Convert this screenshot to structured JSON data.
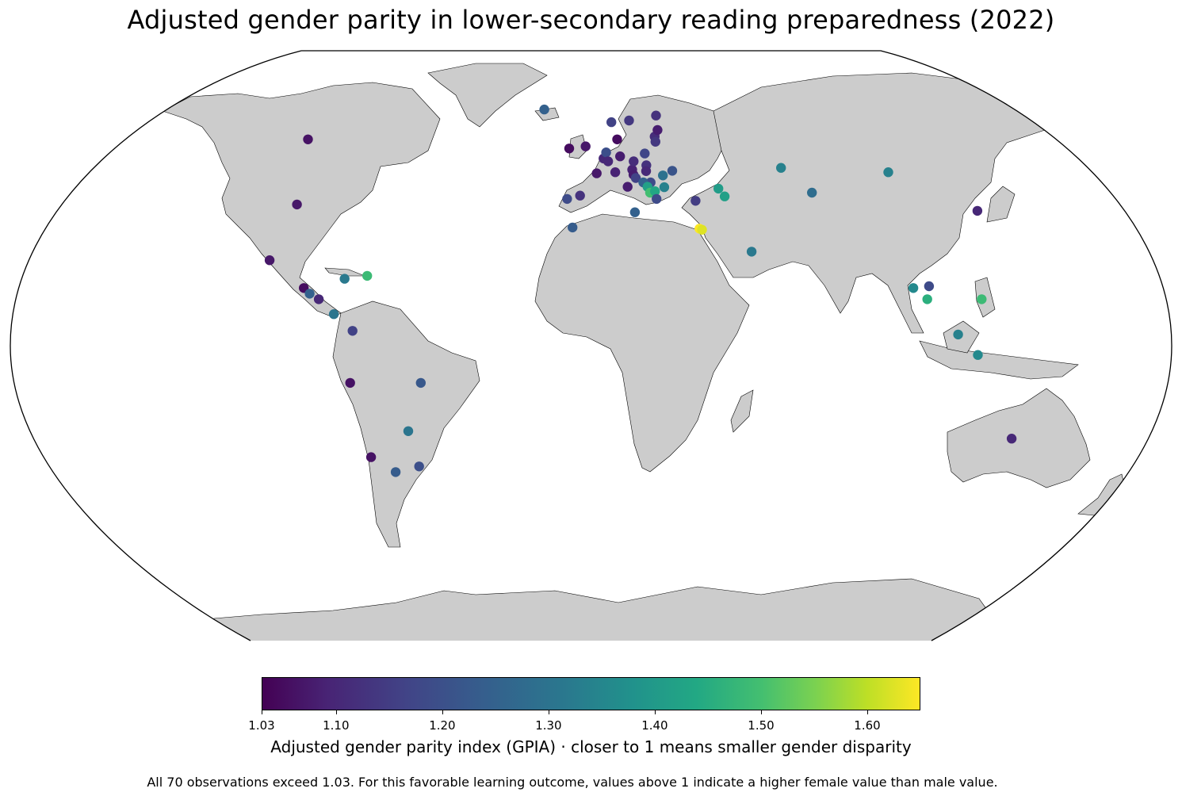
{
  "title": "Adjusted gender parity in lower-secondary reading preparedness (2022)",
  "colorbar": {
    "min": 1.03,
    "max": 1.65,
    "colormap": "viridis",
    "ticks": [
      "1.03",
      "1.10",
      "1.20",
      "1.30",
      "1.40",
      "1.50",
      "1.60"
    ],
    "label": "Adjusted gender parity index (GPIA) · closer to 1 means smaller gender disparity"
  },
  "footnote": "All 70 observations exceed 1.03. For this favorable learning outcome, values above 1 indicate a higher female value than male value.",
  "colors": {
    "land": "#cccccc",
    "ocean": "#ffffff",
    "border": "#000000"
  },
  "chart_data": {
    "type": "scatter",
    "projection": "Robinson",
    "title": "Adjusted gender parity in lower-secondary reading preparedness (2022)",
    "value_label": "Adjusted gender parity index (GPIA) · closer to 1 means smaller gender disparity",
    "color_range": [
      1.03,
      1.65
    ],
    "points": [
      {
        "lon": -106,
        "lat": 56,
        "value": 1.06
      },
      {
        "lon": -98,
        "lat": 38,
        "value": 1.07
      },
      {
        "lon": -102,
        "lat": 23,
        "value": 1.07
      },
      {
        "lon": -90,
        "lat": 15.5,
        "value": 1.05
      },
      {
        "lon": -88,
        "lat": 14,
        "value": 1.22
      },
      {
        "lon": -85,
        "lat": 12.5,
        "value": 1.1
      },
      {
        "lon": -80,
        "lat": 8.5,
        "value": 1.27
      },
      {
        "lon": -77.5,
        "lat": 18,
        "value": 1.28
      },
      {
        "lon": -70.5,
        "lat": 18.8,
        "value": 1.45
      },
      {
        "lon": -74,
        "lat": 4,
        "value": 1.15
      },
      {
        "lon": -75,
        "lat": -10,
        "value": 1.06
      },
      {
        "lon": -53,
        "lat": -10,
        "value": 1.2
      },
      {
        "lon": -58,
        "lat": -23,
        "value": 1.27
      },
      {
        "lon": -71,
        "lat": -30,
        "value": 1.06
      },
      {
        "lon": -64,
        "lat": -34,
        "value": 1.21
      },
      {
        "lon": -56,
        "lat": -32.5,
        "value": 1.18
      },
      {
        "lon": -19,
        "lat": 64.8,
        "value": 1.22
      },
      {
        "lon": -8,
        "lat": 53.4,
        "value": 1.05
      },
      {
        "lon": -2,
        "lat": 54,
        "value": 1.07
      },
      {
        "lon": 2,
        "lat": 46.5,
        "value": 1.07
      },
      {
        "lon": -3.7,
        "lat": 40.4,
        "value": 1.12
      },
      {
        "lon": -8,
        "lat": 39.5,
        "value": 1.17
      },
      {
        "lon": -6,
        "lat": 31.8,
        "value": 1.21
      },
      {
        "lon": 4.5,
        "lat": 50.6,
        "value": 1.1
      },
      {
        "lon": 5.5,
        "lat": 52.3,
        "value": 1.18
      },
      {
        "lon": 6.1,
        "lat": 49.8,
        "value": 1.1
      },
      {
        "lon": 8.5,
        "lat": 46.8,
        "value": 1.09
      },
      {
        "lon": 9.8,
        "lat": 56,
        "value": 1.05
      },
      {
        "lon": 10.5,
        "lat": 51.2,
        "value": 1.08
      },
      {
        "lon": 8,
        "lat": 61,
        "value": 1.15
      },
      {
        "lon": 15,
        "lat": 61.5,
        "value": 1.13
      },
      {
        "lon": 26,
        "lat": 63,
        "value": 1.12
      },
      {
        "lon": 14.5,
        "lat": 47.5,
        "value": 1.09
      },
      {
        "lon": 15.2,
        "lat": 49.8,
        "value": 1.11
      },
      {
        "lon": 19.5,
        "lat": 52,
        "value": 1.16
      },
      {
        "lon": 19.6,
        "lat": 48.7,
        "value": 1.12
      },
      {
        "lon": 19.3,
        "lat": 47.1,
        "value": 1.1
      },
      {
        "lon": 14.8,
        "lat": 46.1,
        "value": 1.08
      },
      {
        "lon": 15.5,
        "lat": 45.2,
        "value": 1.15
      },
      {
        "lon": 12.5,
        "lat": 42.8,
        "value": 1.08
      },
      {
        "lon": 20.5,
        "lat": 44,
        "value": 1.17
      },
      {
        "lon": 18,
        "lat": 44,
        "value": 1.22
      },
      {
        "lon": 19.3,
        "lat": 42.8,
        "value": 1.38
      },
      {
        "lon": 20,
        "lat": 41.2,
        "value": 1.46
      },
      {
        "lon": 21.7,
        "lat": 41.6,
        "value": 1.4
      },
      {
        "lon": 25,
        "lat": 42.7,
        "value": 1.3
      },
      {
        "lon": 25,
        "lat": 45.9,
        "value": 1.26
      },
      {
        "lon": 28.5,
        "lat": 47.2,
        "value": 1.19
      },
      {
        "lon": 22,
        "lat": 39.5,
        "value": 1.17
      },
      {
        "lon": 24,
        "lat": 56.8,
        "value": 1.11
      },
      {
        "lon": 25.5,
        "lat": 58.7,
        "value": 1.08
      },
      {
        "lon": 24,
        "lat": 55.3,
        "value": 1.13
      },
      {
        "lon": 14.5,
        "lat": 35.9,
        "value": 1.22
      },
      {
        "lon": 35,
        "lat": 39,
        "value": 1.14
      },
      {
        "lon": 43.4,
        "lat": 42.3,
        "value": 1.37
      },
      {
        "lon": 45,
        "lat": 40.2,
        "value": 1.38
      },
      {
        "lon": 35.2,
        "lat": 31.5,
        "value": 1.65
      },
      {
        "lon": 36,
        "lat": 31.2,
        "value": 1.62
      },
      {
        "lon": 51.2,
        "lat": 25.3,
        "value": 1.28
      },
      {
        "lon": 67,
        "lat": 48,
        "value": 1.3
      },
      {
        "lon": 74.8,
        "lat": 41.2,
        "value": 1.25
      },
      {
        "lon": 104,
        "lat": 46.8,
        "value": 1.3
      },
      {
        "lon": 127.8,
        "lat": 36.3,
        "value": 1.1
      },
      {
        "lon": 101,
        "lat": 15.5,
        "value": 1.32
      },
      {
        "lon": 105,
        "lat": 12.5,
        "value": 1.42
      },
      {
        "lon": 106,
        "lat": 16,
        "value": 1.17
      },
      {
        "lon": 122,
        "lat": 12.5,
        "value": 1.45
      },
      {
        "lon": 113.9,
        "lat": 3,
        "value": 1.3
      },
      {
        "lon": 120,
        "lat": -2.5,
        "value": 1.32
      },
      {
        "lon": 134,
        "lat": -25,
        "value": 1.1
      }
    ]
  }
}
